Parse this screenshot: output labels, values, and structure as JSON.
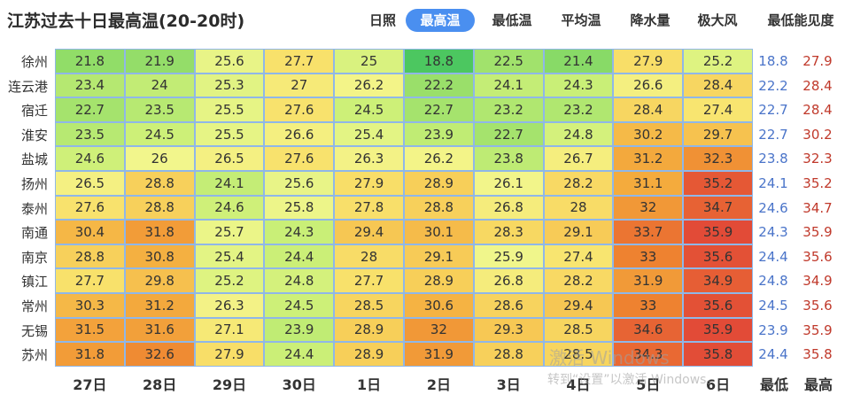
{
  "title": "江苏过去十日最高温(20-20时)",
  "tabs": [
    "日照",
    "最高温",
    "最低温",
    "平均温",
    "降水量",
    "极大风",
    "最低能见度"
  ],
  "active_tab": 1,
  "watermark": {
    "line1": "激活 Windows",
    "line2": "转到“设置”以激活 Windows。"
  },
  "chart_data": {
    "type": "heatmap",
    "title": "江苏过去十日最高温(20-20时)",
    "columns": [
      "27日",
      "28日",
      "29日",
      "30日",
      "1日",
      "2日",
      "3日",
      "4日",
      "5日",
      "6日"
    ],
    "summary_columns": [
      "最低",
      "最高"
    ],
    "rows": [
      {
        "city": "徐州",
        "values": [
          21.8,
          21.9,
          25.6,
          27.7,
          25,
          18.8,
          22.5,
          21.4,
          27.9,
          25.2
        ],
        "min": 18.8,
        "max": 27.9
      },
      {
        "city": "连云港",
        "values": [
          23.4,
          24,
          25.3,
          27,
          26.2,
          22.2,
          24.1,
          24.3,
          26.6,
          28.4
        ],
        "min": 22.2,
        "max": 28.4
      },
      {
        "city": "宿迁",
        "values": [
          22.7,
          23.5,
          25.5,
          27.6,
          24.5,
          22.7,
          23.2,
          23.2,
          28.4,
          27.4
        ],
        "min": 22.7,
        "max": 28.4
      },
      {
        "city": "淮安",
        "values": [
          23.5,
          24.5,
          25.5,
          26.6,
          25.4,
          23.9,
          22.7,
          24.8,
          30.2,
          29.7
        ],
        "min": 22.7,
        "max": 30.2
      },
      {
        "city": "盐城",
        "values": [
          24.6,
          26,
          26.5,
          27.6,
          26.3,
          26.2,
          23.8,
          26.7,
          31.2,
          32.3
        ],
        "min": 23.8,
        "max": 32.3
      },
      {
        "city": "扬州",
        "values": [
          26.5,
          28.8,
          24.1,
          25.6,
          27.9,
          28.9,
          26.1,
          28.2,
          31.1,
          35.2
        ],
        "min": 24.1,
        "max": 35.2
      },
      {
        "city": "泰州",
        "values": [
          27.6,
          28.8,
          24.6,
          25.8,
          27.8,
          28.8,
          26.8,
          28,
          32,
          34.7
        ],
        "min": 24.6,
        "max": 34.7
      },
      {
        "city": "南通",
        "values": [
          30.4,
          31.8,
          25.7,
          24.3,
          29.4,
          30.1,
          28.3,
          29.1,
          33.7,
          35.9
        ],
        "min": 24.3,
        "max": 35.9
      },
      {
        "city": "南京",
        "values": [
          28.8,
          30.8,
          25.4,
          24.4,
          28,
          29.1,
          25.9,
          27.4,
          33,
          35.6
        ],
        "min": 24.4,
        "max": 35.6
      },
      {
        "city": "镇江",
        "values": [
          27.7,
          29.8,
          25.2,
          24.8,
          27.7,
          28.9,
          26.8,
          28.2,
          31.9,
          34.9
        ],
        "min": 24.8,
        "max": 34.9
      },
      {
        "city": "常州",
        "values": [
          30.3,
          31.2,
          26.3,
          24.5,
          28.5,
          30.6,
          28.6,
          29.4,
          33,
          35.6
        ],
        "min": 24.5,
        "max": 35.6
      },
      {
        "city": "无锡",
        "values": [
          31.5,
          31.6,
          27.1,
          23.9,
          28.9,
          32,
          29.3,
          28.5,
          34.6,
          35.9
        ],
        "min": 23.9,
        "max": 35.9
      },
      {
        "city": "苏州",
        "values": [
          31.8,
          32.6,
          27.9,
          24.4,
          28.9,
          31.9,
          28.8,
          28.5,
          34.3,
          35.8
        ],
        "min": 24.4,
        "max": 35.8
      }
    ]
  }
}
